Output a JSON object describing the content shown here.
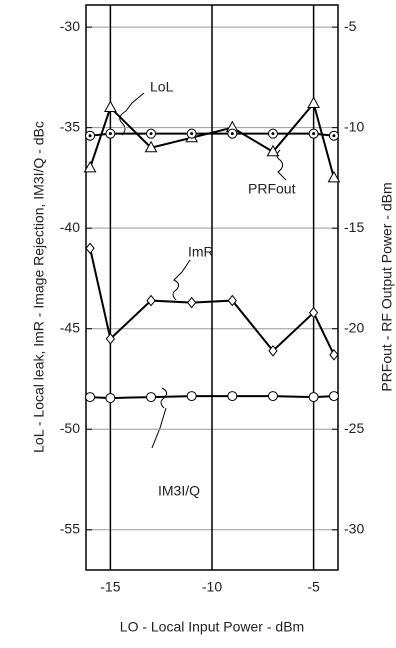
{
  "chart_data": {
    "type": "line",
    "x_label": "LO - Local Input Power - dBm",
    "y_label": "LoL - Local leak, ImR - Image Rejection, IM3I/Q - dBc",
    "y2_label": "PRFout - RF Output Power - dBm",
    "x": [
      -16,
      -15,
      -13,
      -11,
      -9,
      -7,
      -5,
      -4
    ],
    "series": [
      {
        "name": "LoL",
        "color": "#000000",
        "marker": "triangle",
        "values": [
          -37,
          -34,
          -36,
          -35.5,
          -35,
          -36.2,
          -33.8,
          -37.5
        ]
      },
      {
        "name": "PRFout",
        "color": "#000000",
        "marker": "dotted-circle",
        "axis": "y2",
        "values": [
          -10.4,
          -10.3,
          -10.3,
          -10.3,
          -10.3,
          -10.3,
          -10.3,
          -10.4
        ]
      },
      {
        "name": "ImR",
        "color": "#000000",
        "marker": "diamond",
        "values": [
          -41,
          -45.5,
          -43.6,
          -43.7,
          -43.6,
          -46.1,
          -44.2,
          -46.3
        ]
      },
      {
        "name": "IM3I/Q",
        "color": "#000000",
        "marker": "circle",
        "values": [
          -48.4,
          -48.45,
          -48.4,
          -48.35,
          -48.35,
          -48.35,
          -48.4,
          -48.35
        ]
      }
    ],
    "xlim": [
      -16.2,
      -3.8
    ],
    "xticks": [
      -15,
      -10,
      -5
    ],
    "ylim": [
      -57,
      -28.9
    ],
    "yticks": [
      -30,
      -35,
      -40,
      -45,
      -50,
      -55
    ],
    "y2lim": [
      -32,
      -3.9
    ],
    "y2ticks": [
      -5,
      -10,
      -15,
      -20,
      -25,
      -30
    ],
    "grid": true
  }
}
